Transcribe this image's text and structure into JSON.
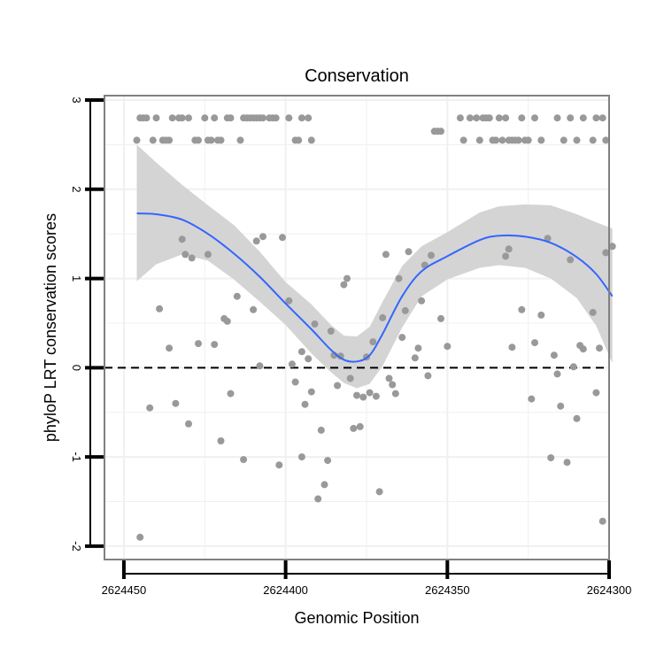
{
  "chart_data": {
    "type": "scatter",
    "title": "Conservation",
    "xlabel": "Genomic Position",
    "ylabel": "phyloP LRT conservation scores",
    "x_reversed": true,
    "xlim": [
      2624300,
      2624456
    ],
    "ylim": [
      -2.15,
      3.05
    ],
    "x_ticks": [
      2624450,
      2624400,
      2624350,
      2624300
    ],
    "x_tick_labels": [
      "2624450",
      "2624400",
      "2624350",
      "2624300"
    ],
    "y_ticks": [
      -2,
      -1,
      0,
      1,
      2,
      3
    ],
    "y_tick_labels": [
      "-2",
      "-1",
      "0",
      "1",
      "2",
      "3"
    ],
    "x_minor_gridlines": [
      2624425,
      2624375,
      2624325
    ],
    "y_minor_gridlines": [
      -1.5,
      -0.5,
      0.5,
      1.5,
      2.5
    ],
    "reference_line": {
      "y": 0,
      "style": "dashed"
    },
    "colors": {
      "points": "#999999",
      "smooth": "#3366FF",
      "ribbon": "#d4d4d4",
      "grid": "#f0f0f0",
      "border": "#808080"
    },
    "points": [
      {
        "x": 2624446,
        "y": 2.55
      },
      {
        "x": 2624445,
        "y": 2.8
      },
      {
        "x": 2624444,
        "y": 2.8
      },
      {
        "x": 2624443,
        "y": 2.8
      },
      {
        "x": 2624441,
        "y": 2.55
      },
      {
        "x": 2624440,
        "y": 2.8
      },
      {
        "x": 2624438,
        "y": 2.55
      },
      {
        "x": 2624437,
        "y": 2.55
      },
      {
        "x": 2624436,
        "y": 2.55
      },
      {
        "x": 2624435,
        "y": 2.8
      },
      {
        "x": 2624433,
        "y": 2.8
      },
      {
        "x": 2624432,
        "y": 2.8
      },
      {
        "x": 2624430,
        "y": 2.8
      },
      {
        "x": 2624428,
        "y": 2.55
      },
      {
        "x": 2624427,
        "y": 2.55
      },
      {
        "x": 2624425,
        "y": 2.8
      },
      {
        "x": 2624424,
        "y": 2.55
      },
      {
        "x": 2624423,
        "y": 2.55
      },
      {
        "x": 2624422,
        "y": 2.8
      },
      {
        "x": 2624421,
        "y": 2.55
      },
      {
        "x": 2624420,
        "y": 2.55
      },
      {
        "x": 2624418,
        "y": 2.8
      },
      {
        "x": 2624417,
        "y": 2.8
      },
      {
        "x": 2624414,
        "y": 2.55
      },
      {
        "x": 2624413,
        "y": 2.8
      },
      {
        "x": 2624412,
        "y": 2.8
      },
      {
        "x": 2624411,
        "y": 2.8
      },
      {
        "x": 2624410,
        "y": 2.8
      },
      {
        "x": 2624409,
        "y": 2.8
      },
      {
        "x": 2624408,
        "y": 2.8
      },
      {
        "x": 2624407,
        "y": 2.8
      },
      {
        "x": 2624405,
        "y": 2.8
      },
      {
        "x": 2624404,
        "y": 2.8
      },
      {
        "x": 2624403,
        "y": 2.8
      },
      {
        "x": 2624399,
        "y": 2.8
      },
      {
        "x": 2624397,
        "y": 2.55
      },
      {
        "x": 2624396,
        "y": 2.55
      },
      {
        "x": 2624395,
        "y": 2.8
      },
      {
        "x": 2624393,
        "y": 2.8
      },
      {
        "x": 2624392,
        "y": 2.55
      },
      {
        "x": 2624354,
        "y": 2.65
      },
      {
        "x": 2624353,
        "y": 2.65
      },
      {
        "x": 2624352,
        "y": 2.65
      },
      {
        "x": 2624346,
        "y": 2.8
      },
      {
        "x": 2624345,
        "y": 2.55
      },
      {
        "x": 2624343,
        "y": 2.8
      },
      {
        "x": 2624341,
        "y": 2.8
      },
      {
        "x": 2624340,
        "y": 2.55
      },
      {
        "x": 2624339,
        "y": 2.8
      },
      {
        "x": 2624338,
        "y": 2.8
      },
      {
        "x": 2624337,
        "y": 2.8
      },
      {
        "x": 2624336,
        "y": 2.55
      },
      {
        "x": 2624335,
        "y": 2.55
      },
      {
        "x": 2624334,
        "y": 2.8
      },
      {
        "x": 2624333,
        "y": 2.55
      },
      {
        "x": 2624332,
        "y": 2.8
      },
      {
        "x": 2624331,
        "y": 2.55
      },
      {
        "x": 2624330,
        "y": 2.55
      },
      {
        "x": 2624329,
        "y": 2.55
      },
      {
        "x": 2624328,
        "y": 2.55
      },
      {
        "x": 2624327,
        "y": 2.8
      },
      {
        "x": 2624326,
        "y": 2.55
      },
      {
        "x": 2624325,
        "y": 2.55
      },
      {
        "x": 2624323,
        "y": 2.8
      },
      {
        "x": 2624321,
        "y": 2.55
      },
      {
        "x": 2624316,
        "y": 2.8
      },
      {
        "x": 2624314,
        "y": 2.55
      },
      {
        "x": 2624312,
        "y": 2.8
      },
      {
        "x": 2624310,
        "y": 2.55
      },
      {
        "x": 2624308,
        "y": 2.8
      },
      {
        "x": 2624305,
        "y": 2.55
      },
      {
        "x": 2624304,
        "y": 2.8
      },
      {
        "x": 2624302,
        "y": 2.8
      },
      {
        "x": 2624301,
        "y": 2.55
      },
      {
        "x": 2624445,
        "y": -1.9
      },
      {
        "x": 2624442,
        "y": -0.45
      },
      {
        "x": 2624439,
        "y": 0.66
      },
      {
        "x": 2624436,
        "y": 0.22
      },
      {
        "x": 2624434,
        "y": -0.4
      },
      {
        "x": 2624432,
        "y": 1.44
      },
      {
        "x": 2624431,
        "y": 1.27
      },
      {
        "x": 2624430,
        "y": -0.63
      },
      {
        "x": 2624429,
        "y": 1.23
      },
      {
        "x": 2624427,
        "y": 0.27
      },
      {
        "x": 2624424,
        "y": 1.27
      },
      {
        "x": 2624422,
        "y": 0.26
      },
      {
        "x": 2624420,
        "y": -0.82
      },
      {
        "x": 2624419,
        "y": 0.55
      },
      {
        "x": 2624418,
        "y": 0.52
      },
      {
        "x": 2624417,
        "y": -0.29
      },
      {
        "x": 2624415,
        "y": 0.8
      },
      {
        "x": 2624413,
        "y": -1.03
      },
      {
        "x": 2624410,
        "y": 0.65
      },
      {
        "x": 2624409,
        "y": 1.42
      },
      {
        "x": 2624408,
        "y": 0.02
      },
      {
        "x": 2624407,
        "y": 1.47
      },
      {
        "x": 2624402,
        "y": -1.09
      },
      {
        "x": 2624401,
        "y": 1.46
      },
      {
        "x": 2624399,
        "y": 0.75
      },
      {
        "x": 2624398,
        "y": 0.04
      },
      {
        "x": 2624397,
        "y": -0.16
      },
      {
        "x": 2624395,
        "y": -1.0
      },
      {
        "x": 2624395,
        "y": 0.18
      },
      {
        "x": 2624394,
        "y": -0.41
      },
      {
        "x": 2624393,
        "y": 0.1
      },
      {
        "x": 2624392,
        "y": -0.27
      },
      {
        "x": 2624391,
        "y": 0.49
      },
      {
        "x": 2624390,
        "y": -1.47
      },
      {
        "x": 2624389,
        "y": -0.7
      },
      {
        "x": 2624388,
        "y": -1.31
      },
      {
        "x": 2624387,
        "y": -1.04
      },
      {
        "x": 2624386,
        "y": 0.41
      },
      {
        "x": 2624385,
        "y": 0.14
      },
      {
        "x": 2624384,
        "y": -0.2
      },
      {
        "x": 2624383,
        "y": 0.13
      },
      {
        "x": 2624382,
        "y": 0.93
      },
      {
        "x": 2624381,
        "y": 1.0
      },
      {
        "x": 2624380,
        "y": -0.12
      },
      {
        "x": 2624379,
        "y": -0.68
      },
      {
        "x": 2624378,
        "y": -0.31
      },
      {
        "x": 2624377,
        "y": -0.66
      },
      {
        "x": 2624376,
        "y": -0.33
      },
      {
        "x": 2624375,
        "y": 0.12
      },
      {
        "x": 2624374,
        "y": -0.28
      },
      {
        "x": 2624373,
        "y": 0.29
      },
      {
        "x": 2624372,
        "y": -0.32
      },
      {
        "x": 2624371,
        "y": -1.39
      },
      {
        "x": 2624370,
        "y": 0.56
      },
      {
        "x": 2624369,
        "y": 1.27
      },
      {
        "x": 2624368,
        "y": -0.12
      },
      {
        "x": 2624367,
        "y": -0.19
      },
      {
        "x": 2624366,
        "y": -0.29
      },
      {
        "x": 2624365,
        "y": 1.0
      },
      {
        "x": 2624364,
        "y": 0.34
      },
      {
        "x": 2624363,
        "y": 0.64
      },
      {
        "x": 2624362,
        "y": 1.3
      },
      {
        "x": 2624360,
        "y": 0.11
      },
      {
        "x": 2624359,
        "y": 0.22
      },
      {
        "x": 2624358,
        "y": 0.75
      },
      {
        "x": 2624357,
        "y": 1.15
      },
      {
        "x": 2624356,
        "y": -0.09
      },
      {
        "x": 2624355,
        "y": 1.26
      },
      {
        "x": 2624352,
        "y": 0.55
      },
      {
        "x": 2624350,
        "y": 0.24
      },
      {
        "x": 2624332,
        "y": 1.25
      },
      {
        "x": 2624331,
        "y": 1.33
      },
      {
        "x": 2624330,
        "y": 0.23
      },
      {
        "x": 2624327,
        "y": 0.65
      },
      {
        "x": 2624324,
        "y": -0.35
      },
      {
        "x": 2624323,
        "y": 0.28
      },
      {
        "x": 2624321,
        "y": 0.59
      },
      {
        "x": 2624319,
        "y": 1.45
      },
      {
        "x": 2624318,
        "y": -1.01
      },
      {
        "x": 2624317,
        "y": 0.14
      },
      {
        "x": 2624316,
        "y": -0.07
      },
      {
        "x": 2624315,
        "y": -0.43
      },
      {
        "x": 2624313,
        "y": -1.06
      },
      {
        "x": 2624312,
        "y": 1.21
      },
      {
        "x": 2624311,
        "y": 0.01
      },
      {
        "x": 2624310,
        "y": -0.57
      },
      {
        "x": 2624309,
        "y": 0.25
      },
      {
        "x": 2624308,
        "y": 0.21
      },
      {
        "x": 2624305,
        "y": 0.62
      },
      {
        "x": 2624304,
        "y": -0.28
      },
      {
        "x": 2624303,
        "y": 0.22
      },
      {
        "x": 2624302,
        "y": -1.72
      },
      {
        "x": 2624301,
        "y": 1.29
      },
      {
        "x": 2624299,
        "y": 1.36
      }
    ],
    "smooth": {
      "x": [
        2624446,
        2624440,
        2624432,
        2624424,
        2624416,
        2624408,
        2624400,
        2624392,
        2624386,
        2624382,
        2624378,
        2624374,
        2624370,
        2624364,
        2624358,
        2624350,
        2624340,
        2624334,
        2624326,
        2624318,
        2624310,
        2624304,
        2624299
      ],
      "y": [
        1.73,
        1.72,
        1.66,
        1.5,
        1.28,
        1.02,
        0.72,
        0.43,
        0.2,
        0.09,
        0.07,
        0.14,
        0.38,
        0.8,
        1.08,
        1.25,
        1.43,
        1.48,
        1.47,
        1.4,
        1.24,
        1.05,
        0.8
      ],
      "ci_upper": [
        2.5,
        2.3,
        2.05,
        1.82,
        1.6,
        1.3,
        0.96,
        0.71,
        0.48,
        0.36,
        0.35,
        0.46,
        0.74,
        1.14,
        1.36,
        1.52,
        1.74,
        1.81,
        1.83,
        1.82,
        1.72,
        1.63,
        1.56
      ],
      "ci_lower": [
        0.97,
        1.16,
        1.27,
        1.2,
        0.99,
        0.74,
        0.48,
        0.16,
        -0.05,
        -0.17,
        -0.23,
        -0.18,
        0.02,
        0.45,
        0.8,
        0.99,
        1.12,
        1.15,
        1.12,
        1.0,
        0.78,
        0.47,
        0.05
      ]
    }
  }
}
